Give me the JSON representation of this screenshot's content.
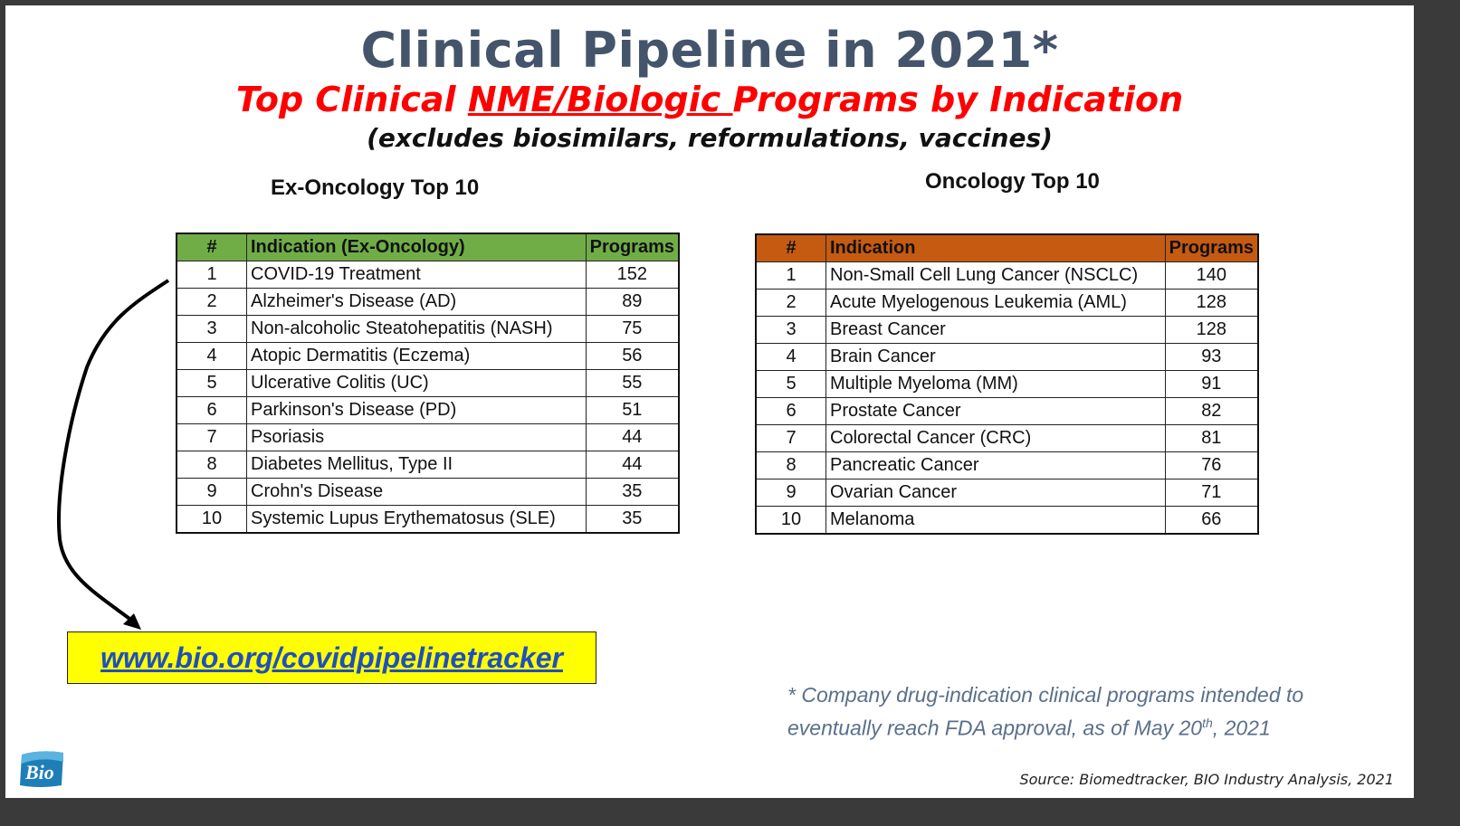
{
  "title": "Clinical Pipeline in 2021*",
  "subtitle": {
    "before": "Top Clinical ",
    "underlined": "NME/Biologic ",
    "after": "Programs by Indication"
  },
  "subtitle2": "(excludes biosimilars, reformulations, vaccines)",
  "ex_oncology": {
    "heading": "Ex-Oncology Top 10",
    "header_color": "#70ad47",
    "columns": [
      "#",
      "Indication (Ex-Oncology)",
      "Programs"
    ],
    "rows": [
      [
        "1",
        "COVID-19 Treatment",
        "152"
      ],
      [
        "2",
        "Alzheimer's Disease (AD)",
        "89"
      ],
      [
        "3",
        "Non-alcoholic Steatohepatitis (NASH)",
        "75"
      ],
      [
        "4",
        "Atopic Dermatitis (Eczema)",
        "56"
      ],
      [
        "5",
        "Ulcerative Colitis (UC)",
        "55"
      ],
      [
        "6",
        "Parkinson's Disease (PD)",
        "51"
      ],
      [
        "7",
        "Psoriasis",
        "44"
      ],
      [
        "8",
        "Diabetes Mellitus, Type II",
        "44"
      ],
      [
        "9",
        "Crohn's Disease",
        "35"
      ],
      [
        "10",
        "Systemic Lupus Erythematosus (SLE)",
        "35"
      ]
    ]
  },
  "oncology": {
    "heading": "Oncology Top 10",
    "header_color": "#c55a11",
    "columns": [
      "#",
      "Indication",
      "Programs"
    ],
    "rows": [
      [
        "1",
        "Non-Small Cell Lung Cancer (NSCLC)",
        "140"
      ],
      [
        "2",
        "Acute Myelogenous Leukemia (AML)",
        "128"
      ],
      [
        "3",
        "Breast Cancer",
        "128"
      ],
      [
        "4",
        "Brain Cancer",
        "93"
      ],
      [
        "5",
        "Multiple Myeloma (MM)",
        "91"
      ],
      [
        "6",
        "Prostate Cancer",
        "82"
      ],
      [
        "7",
        "Colorectal Cancer (CRC)",
        "81"
      ],
      [
        "8",
        "Pancreatic Cancer",
        "76"
      ],
      [
        "9",
        "Ovarian Cancer",
        "71"
      ],
      [
        "10",
        "Melanoma",
        "66"
      ]
    ]
  },
  "link": {
    "text": "www.bio.org/covidpipelinetracker",
    "box_color": "#ffff00"
  },
  "footnote": {
    "line1": "* Company drug-indication clinical programs intended to",
    "line2_before": "eventually reach FDA approval, as of May 20",
    "line2_sup": "th",
    "line2_after": ", 2021"
  },
  "source": "Source: Biomedtracker, BIO Industry Analysis, 2021",
  "logo": {
    "text": "Bio",
    "icon": "bio-logo"
  },
  "colors": {
    "title": "#44546a",
    "subtitle": "#ff0000",
    "link": "#1f4fbf"
  }
}
